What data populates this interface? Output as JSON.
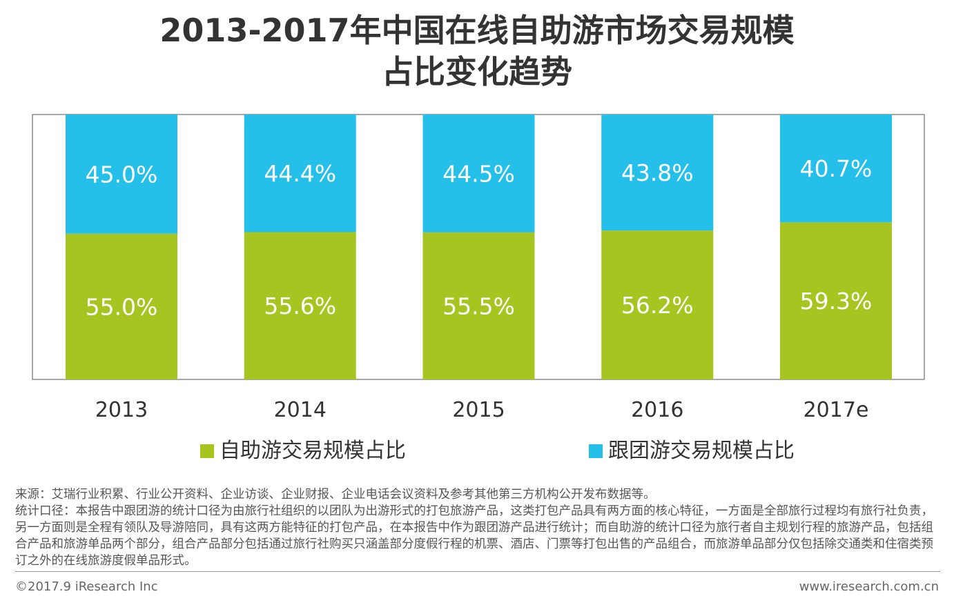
{
  "title": {
    "line1": "2013-2017年中国在线自助游市场交易规模",
    "line2": "占比变化趋势"
  },
  "chart_data": {
    "type": "bar",
    "stacked": true,
    "title": "2013-2017年中国在线自助游市场交易规模占比变化趋势",
    "categories": [
      "2013",
      "2014",
      "2015",
      "2016",
      "2017e"
    ],
    "series": [
      {
        "name": "自助游交易规模占比",
        "color": "#a6c520",
        "values": [
          55.0,
          55.6,
          55.5,
          56.2,
          59.3
        ],
        "labels": [
          "55.0%",
          "55.6%",
          "55.5%",
          "56.2%",
          "59.3%"
        ]
      },
      {
        "name": "跟团游交易规模占比",
        "color": "#25c0ea",
        "values": [
          45.0,
          44.4,
          44.5,
          43.8,
          40.7
        ],
        "labels": [
          "45.0%",
          "44.4%",
          "44.5%",
          "43.8%",
          "40.7%"
        ]
      }
    ],
    "ylim": [
      0,
      100
    ],
    "xlabel": "",
    "ylabel": "",
    "legend": "bottom"
  },
  "notes": {
    "source": "来源：艾瑞行业积累、行业公开资料、企业访谈、企业财报、企业电话会议资料及参考其他第三方机构公开发布数据等。",
    "definition": "统计口径：本报告中跟团游的统计口径为由旅行社组织的以团队为出游形式的打包旅游产品，这类打包产品具有两方面的核心特征，一方面是全部旅行过程均有旅行社负责，另一方面则是全程有领队及导游陪同，具有这两方能特征的打包产品，在本报告中作为跟团游产品进行统计；而自助游的统计口径为旅行者自主规划行程的旅游产品，包括组合产品和旅游单品两个部分，组合产品部分包括通过旅行社购买只涵盖部分度假行程的机票、酒店、门票等打包出售的产品组合，而旅游单品部分仅包括除交通类和住宿类预订之外的在线旅游度假单品形式。"
  },
  "footer": {
    "copyright": "©2017.9 iResearch Inc",
    "website": "www.iresearch.com.cn"
  }
}
